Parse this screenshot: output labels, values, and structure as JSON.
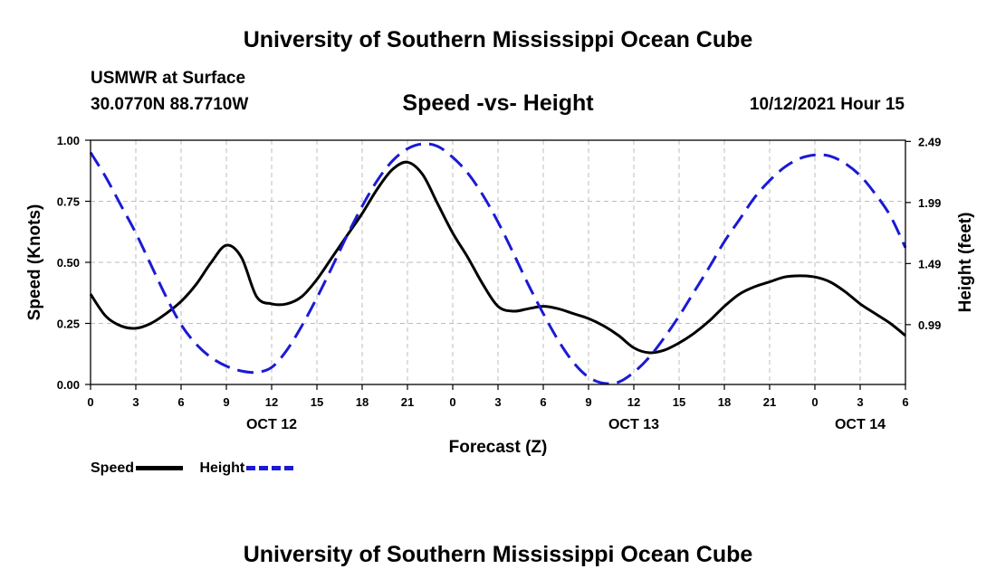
{
  "header": {
    "title": "University of Southern Mississippi Ocean Cube",
    "station": "USMWR at Surface",
    "coords": "30.0770N  88.7710W",
    "subtitle": "Speed -vs- Height",
    "issued": "10/12/2021 Hour 15"
  },
  "footer": {
    "title": "University of Southern Mississippi Ocean Cube"
  },
  "legend": {
    "speed_label": "Speed",
    "height_label": "Height"
  },
  "colors": {
    "speed": "#000000",
    "height": "#1a1ad4",
    "grid": "#bdbdbd"
  },
  "chart_data": {
    "type": "line",
    "title": "Speed -vs- Height",
    "xlabel": "Forecast (Z)",
    "ylabel": "Speed (Knots)",
    "y2label": "Height (feet)",
    "xlim": [
      0,
      54
    ],
    "ylim": [
      0,
      1.0
    ],
    "y2lim": [
      0.5,
      2.5
    ],
    "grid": true,
    "legend_position": "bottom-left",
    "x_ticks": [
      0,
      3,
      6,
      9,
      12,
      15,
      18,
      21,
      24,
      27,
      30,
      33,
      36,
      39,
      42,
      45,
      48,
      51,
      54
    ],
    "x_tick_labels": [
      "0",
      "3",
      "6",
      "9",
      "12",
      "15",
      "18",
      "21",
      "0",
      "3",
      "6",
      "9",
      "12",
      "15",
      "18",
      "21",
      "0",
      "3",
      "6"
    ],
    "y_ticks": [
      0,
      0.25,
      0.5,
      0.75,
      1.0
    ],
    "y_tick_labels": [
      "0.00",
      "0.25",
      "0.50",
      "0.75",
      "1.00"
    ],
    "y2_ticks": [
      0.99,
      1.49,
      1.99,
      2.49
    ],
    "y2_tick_labels": [
      "0.99",
      "1.49",
      "1.99",
      "2.49"
    ],
    "date_labels": [
      {
        "x": 12,
        "label": "OCT 12"
      },
      {
        "x": 36,
        "label": "OCT 13"
      },
      {
        "x": 51,
        "label": "OCT 14"
      }
    ],
    "series": [
      {
        "name": "Speed",
        "axis": "left",
        "style": "solid",
        "x": [
          0,
          1,
          2,
          3,
          4,
          5,
          6,
          7,
          8,
          9,
          10,
          11,
          12,
          13,
          14,
          15,
          16,
          17,
          18,
          19,
          20,
          21,
          22,
          23,
          24,
          25,
          26,
          27,
          28,
          29,
          30,
          31,
          32,
          33,
          34,
          35,
          36,
          37,
          38,
          39,
          40,
          41,
          42,
          43,
          44,
          45,
          46,
          47,
          48,
          49,
          50,
          51,
          52,
          53,
          54
        ],
        "values": [
          0.37,
          0.28,
          0.24,
          0.23,
          0.25,
          0.29,
          0.34,
          0.41,
          0.5,
          0.57,
          0.52,
          0.36,
          0.33,
          0.33,
          0.36,
          0.43,
          0.52,
          0.61,
          0.7,
          0.8,
          0.88,
          0.91,
          0.86,
          0.74,
          0.62,
          0.52,
          0.41,
          0.32,
          0.3,
          0.31,
          0.32,
          0.31,
          0.29,
          0.27,
          0.24,
          0.2,
          0.15,
          0.13,
          0.14,
          0.17,
          0.21,
          0.26,
          0.32,
          0.37,
          0.4,
          0.42,
          0.44,
          0.445,
          0.44,
          0.42,
          0.38,
          0.33,
          0.29,
          0.25,
          0.2
        ]
      },
      {
        "name": "Height",
        "axis": "right",
        "style": "dashed",
        "x": [
          0,
          1,
          2,
          3,
          4,
          5,
          6,
          7,
          8,
          9,
          10,
          11,
          12,
          13,
          14,
          15,
          16,
          17,
          18,
          19,
          20,
          21,
          22,
          23,
          24,
          25,
          26,
          27,
          28,
          29,
          30,
          31,
          32,
          33,
          34,
          35,
          36,
          37,
          38,
          39,
          40,
          41,
          42,
          43,
          44,
          45,
          46,
          47,
          48,
          49,
          50,
          51,
          52,
          53,
          54
        ],
        "values": [
          2.4,
          2.2,
          1.97,
          1.74,
          1.48,
          1.22,
          0.99,
          0.83,
          0.72,
          0.65,
          0.61,
          0.6,
          0.64,
          0.78,
          0.98,
          1.21,
          1.46,
          1.72,
          1.96,
          2.17,
          2.33,
          2.43,
          2.47,
          2.45,
          2.36,
          2.23,
          2.05,
          1.83,
          1.58,
          1.32,
          1.08,
          0.86,
          0.68,
          0.56,
          0.51,
          0.52,
          0.6,
          0.72,
          0.88,
          1.06,
          1.26,
          1.46,
          1.67,
          1.85,
          2.03,
          2.17,
          2.28,
          2.35,
          2.38,
          2.37,
          2.31,
          2.21,
          2.06,
          1.88,
          1.62
        ]
      }
    ]
  }
}
